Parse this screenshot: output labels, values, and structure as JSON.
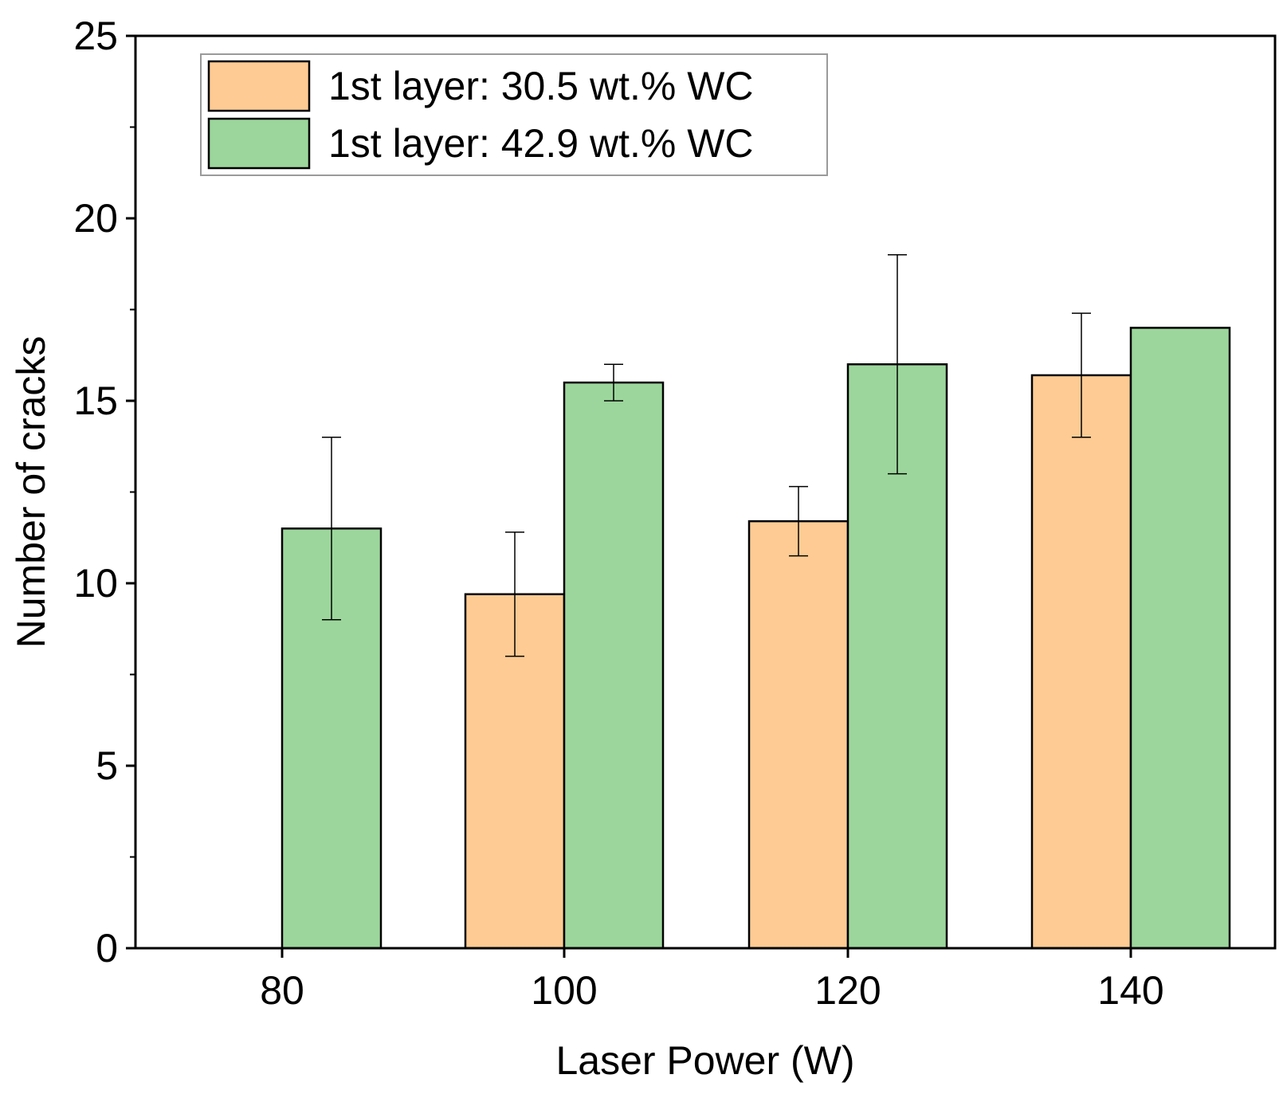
{
  "chart_data": {
    "type": "bar",
    "title": "",
    "xlabel": "Laser Power (W)",
    "ylabel": "Number of cracks",
    "categories": [
      "80",
      "100",
      "120",
      "140"
    ],
    "ylim": [
      0,
      25
    ],
    "yticks": [
      0,
      5,
      10,
      15,
      20,
      25
    ],
    "y_minor_step": 2.5,
    "legend_position": "top-left",
    "series": [
      {
        "name": "1st layer: 30.5 wt.% WC",
        "color": "#fdcb93",
        "values": [
          null,
          9.7,
          11.7,
          15.7
        ],
        "errors": [
          null,
          1.7,
          0.95,
          1.7
        ]
      },
      {
        "name": "1st layer: 42.9 wt.% WC",
        "color": "#9cd69c",
        "values": [
          11.5,
          15.5,
          16.0,
          17.0
        ],
        "errors": [
          2.5,
          0.5,
          3.0,
          null
        ]
      }
    ]
  }
}
